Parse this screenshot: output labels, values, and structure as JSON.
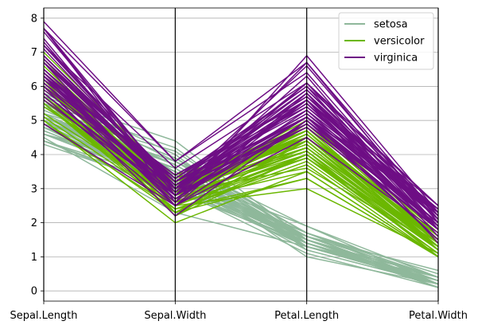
{
  "chart_data": {
    "type": "parallel_coordinates",
    "axes": [
      "Sepal.Length",
      "Sepal.Width",
      "Petal.Length",
      "Petal.Width"
    ],
    "ylim": [
      -0.3,
      8.3
    ],
    "yticks": [
      0,
      1,
      2,
      3,
      4,
      5,
      6,
      7,
      8
    ],
    "grid": true,
    "legend_position": "top-right",
    "series": [
      {
        "name": "setosa",
        "color": "#8fb89b",
        "lines": [
          [
            5.1,
            3.5,
            1.4,
            0.2
          ],
          [
            4.9,
            3.0,
            1.4,
            0.2
          ],
          [
            4.7,
            3.2,
            1.3,
            0.2
          ],
          [
            4.6,
            3.1,
            1.5,
            0.2
          ],
          [
            5.0,
            3.6,
            1.4,
            0.2
          ],
          [
            5.4,
            3.9,
            1.7,
            0.4
          ],
          [
            4.6,
            3.4,
            1.4,
            0.3
          ],
          [
            5.0,
            3.4,
            1.5,
            0.2
          ],
          [
            4.4,
            2.9,
            1.4,
            0.2
          ],
          [
            4.9,
            3.1,
            1.5,
            0.1
          ],
          [
            5.4,
            3.7,
            1.5,
            0.2
          ],
          [
            4.8,
            3.4,
            1.6,
            0.2
          ],
          [
            4.8,
            3.0,
            1.4,
            0.1
          ],
          [
            4.3,
            3.0,
            1.1,
            0.1
          ],
          [
            5.8,
            4.0,
            1.2,
            0.2
          ],
          [
            5.7,
            4.4,
            1.5,
            0.4
          ],
          [
            5.4,
            3.9,
            1.3,
            0.4
          ],
          [
            5.1,
            3.5,
            1.4,
            0.3
          ],
          [
            5.7,
            3.8,
            1.7,
            0.3
          ],
          [
            5.1,
            3.8,
            1.5,
            0.3
          ],
          [
            5.4,
            3.4,
            1.7,
            0.2
          ],
          [
            5.1,
            3.7,
            1.5,
            0.4
          ],
          [
            4.6,
            3.6,
            1.0,
            0.2
          ],
          [
            5.1,
            3.3,
            1.7,
            0.5
          ],
          [
            4.8,
            3.4,
            1.9,
            0.2
          ],
          [
            5.0,
            3.0,
            1.6,
            0.2
          ],
          [
            5.0,
            3.4,
            1.6,
            0.4
          ],
          [
            5.2,
            3.5,
            1.5,
            0.2
          ],
          [
            5.2,
            3.4,
            1.4,
            0.2
          ],
          [
            4.7,
            3.2,
            1.6,
            0.2
          ],
          [
            4.8,
            3.1,
            1.6,
            0.2
          ],
          [
            5.4,
            3.4,
            1.5,
            0.4
          ],
          [
            5.2,
            4.1,
            1.5,
            0.1
          ],
          [
            5.5,
            4.2,
            1.4,
            0.2
          ],
          [
            4.9,
            3.1,
            1.5,
            0.2
          ],
          [
            5.0,
            3.2,
            1.2,
            0.2
          ],
          [
            5.5,
            3.5,
            1.3,
            0.2
          ],
          [
            4.9,
            3.6,
            1.4,
            0.1
          ],
          [
            4.4,
            3.0,
            1.3,
            0.2
          ],
          [
            5.1,
            3.4,
            1.5,
            0.2
          ],
          [
            5.0,
            3.5,
            1.3,
            0.3
          ],
          [
            4.5,
            2.3,
            1.3,
            0.3
          ],
          [
            4.4,
            3.2,
            1.3,
            0.2
          ],
          [
            5.0,
            3.5,
            1.6,
            0.6
          ],
          [
            5.1,
            3.8,
            1.9,
            0.4
          ],
          [
            4.8,
            3.0,
            1.4,
            0.3
          ],
          [
            5.1,
            3.8,
            1.6,
            0.2
          ],
          [
            4.6,
            3.2,
            1.4,
            0.2
          ],
          [
            5.3,
            3.7,
            1.5,
            0.2
          ],
          [
            5.0,
            3.3,
            1.4,
            0.2
          ]
        ]
      },
      {
        "name": "versicolor",
        "color": "#6bb700",
        "lines": [
          [
            7.0,
            3.2,
            4.7,
            1.4
          ],
          [
            6.4,
            3.2,
            4.5,
            1.5
          ],
          [
            6.9,
            3.1,
            4.9,
            1.5
          ],
          [
            5.5,
            2.3,
            4.0,
            1.3
          ],
          [
            6.5,
            2.8,
            4.6,
            1.5
          ],
          [
            5.7,
            2.8,
            4.5,
            1.3
          ],
          [
            6.3,
            3.3,
            4.7,
            1.6
          ],
          [
            4.9,
            2.4,
            3.3,
            1.0
          ],
          [
            6.6,
            2.9,
            4.6,
            1.3
          ],
          [
            5.2,
            2.7,
            3.9,
            1.4
          ],
          [
            5.0,
            2.0,
            3.5,
            1.0
          ],
          [
            5.9,
            3.0,
            4.2,
            1.5
          ],
          [
            6.0,
            2.2,
            4.0,
            1.0
          ],
          [
            6.1,
            2.9,
            4.7,
            1.4
          ],
          [
            5.6,
            2.9,
            3.6,
            1.3
          ],
          [
            6.7,
            3.1,
            4.4,
            1.4
          ],
          [
            5.6,
            3.0,
            4.5,
            1.5
          ],
          [
            5.8,
            2.7,
            4.1,
            1.0
          ],
          [
            6.2,
            2.2,
            4.5,
            1.5
          ],
          [
            5.6,
            2.5,
            3.9,
            1.1
          ],
          [
            5.9,
            3.2,
            4.8,
            1.8
          ],
          [
            6.1,
            2.8,
            4.0,
            1.3
          ],
          [
            6.3,
            2.5,
            4.9,
            1.5
          ],
          [
            6.1,
            2.8,
            4.7,
            1.2
          ],
          [
            6.4,
            2.9,
            4.3,
            1.3
          ],
          [
            6.6,
            3.0,
            4.4,
            1.4
          ],
          [
            6.8,
            2.8,
            4.8,
            1.4
          ],
          [
            6.7,
            3.0,
            5.0,
            1.7
          ],
          [
            6.0,
            2.9,
            4.5,
            1.5
          ],
          [
            5.7,
            2.6,
            3.5,
            1.0
          ],
          [
            5.5,
            2.4,
            3.8,
            1.1
          ],
          [
            5.5,
            2.4,
            3.7,
            1.0
          ],
          [
            5.8,
            2.7,
            3.9,
            1.2
          ],
          [
            6.0,
            2.7,
            5.1,
            1.6
          ],
          [
            5.4,
            3.0,
            4.5,
            1.5
          ],
          [
            6.0,
            3.4,
            4.5,
            1.6
          ],
          [
            6.7,
            3.1,
            4.7,
            1.5
          ],
          [
            6.3,
            2.3,
            4.4,
            1.3
          ],
          [
            5.6,
            3.0,
            4.1,
            1.3
          ],
          [
            5.5,
            2.5,
            4.0,
            1.3
          ],
          [
            5.5,
            2.6,
            4.4,
            1.2
          ],
          [
            6.1,
            3.0,
            4.6,
            1.4
          ],
          [
            5.8,
            2.6,
            4.0,
            1.2
          ],
          [
            5.0,
            2.3,
            3.3,
            1.0
          ],
          [
            5.6,
            2.7,
            4.2,
            1.3
          ],
          [
            5.7,
            3.0,
            4.2,
            1.2
          ],
          [
            5.7,
            2.9,
            4.2,
            1.3
          ],
          [
            6.2,
            2.9,
            4.3,
            1.3
          ],
          [
            5.1,
            2.5,
            3.0,
            1.1
          ],
          [
            5.7,
            2.8,
            4.1,
            1.3
          ]
        ]
      },
      {
        "name": "virginica",
        "color": "#6e0e85",
        "lines": [
          [
            6.3,
            3.3,
            6.0,
            2.5
          ],
          [
            5.8,
            2.7,
            5.1,
            1.9
          ],
          [
            7.1,
            3.0,
            5.9,
            2.1
          ],
          [
            6.3,
            2.9,
            5.6,
            1.8
          ],
          [
            6.5,
            3.0,
            5.8,
            2.2
          ],
          [
            7.6,
            3.0,
            6.6,
            2.1
          ],
          [
            4.9,
            2.5,
            4.5,
            1.7
          ],
          [
            7.3,
            2.9,
            6.3,
            1.8
          ],
          [
            6.7,
            2.5,
            5.8,
            1.8
          ],
          [
            7.2,
            3.6,
            6.1,
            2.5
          ],
          [
            6.5,
            3.2,
            5.1,
            2.0
          ],
          [
            6.4,
            2.7,
            5.3,
            1.9
          ],
          [
            6.8,
            3.0,
            5.5,
            2.1
          ],
          [
            5.7,
            2.5,
            5.0,
            2.0
          ],
          [
            5.8,
            2.8,
            5.1,
            2.4
          ],
          [
            6.4,
            3.2,
            5.3,
            2.3
          ],
          [
            6.5,
            3.0,
            5.5,
            1.8
          ],
          [
            7.7,
            3.8,
            6.7,
            2.2
          ],
          [
            7.7,
            2.6,
            6.9,
            2.3
          ],
          [
            6.0,
            2.2,
            5.0,
            1.5
          ],
          [
            6.9,
            3.2,
            5.7,
            2.3
          ],
          [
            5.6,
            2.8,
            4.9,
            2.0
          ],
          [
            7.7,
            2.8,
            6.7,
            2.0
          ],
          [
            6.3,
            2.7,
            4.9,
            1.8
          ],
          [
            6.7,
            3.3,
            5.7,
            2.1
          ],
          [
            7.2,
            3.2,
            6.0,
            1.8
          ],
          [
            6.2,
            2.8,
            4.8,
            1.8
          ],
          [
            6.1,
            3.0,
            4.9,
            1.8
          ],
          [
            6.4,
            2.8,
            5.6,
            2.1
          ],
          [
            7.2,
            3.0,
            5.8,
            1.6
          ],
          [
            7.4,
            2.8,
            6.1,
            1.9
          ],
          [
            7.9,
            3.8,
            6.4,
            2.0
          ],
          [
            6.4,
            2.8,
            5.6,
            2.2
          ],
          [
            6.3,
            2.8,
            5.1,
            1.5
          ],
          [
            6.1,
            2.6,
            5.6,
            1.4
          ],
          [
            7.7,
            3.0,
            6.1,
            2.3
          ],
          [
            6.3,
            3.4,
            5.6,
            2.4
          ],
          [
            6.4,
            3.1,
            5.5,
            1.8
          ],
          [
            6.0,
            3.0,
            4.8,
            1.8
          ],
          [
            6.9,
            3.1,
            5.4,
            2.1
          ],
          [
            6.7,
            3.1,
            5.6,
            2.4
          ],
          [
            6.9,
            3.1,
            5.1,
            2.3
          ],
          [
            5.8,
            2.7,
            5.1,
            1.9
          ],
          [
            6.8,
            3.2,
            5.9,
            2.3
          ],
          [
            6.7,
            3.3,
            5.7,
            2.5
          ],
          [
            6.7,
            3.0,
            5.2,
            2.3
          ],
          [
            6.3,
            2.5,
            5.0,
            1.9
          ],
          [
            6.5,
            3.0,
            5.2,
            2.0
          ],
          [
            6.2,
            3.4,
            5.4,
            2.3
          ],
          [
            5.9,
            3.0,
            5.1,
            1.8
          ]
        ]
      }
    ]
  }
}
